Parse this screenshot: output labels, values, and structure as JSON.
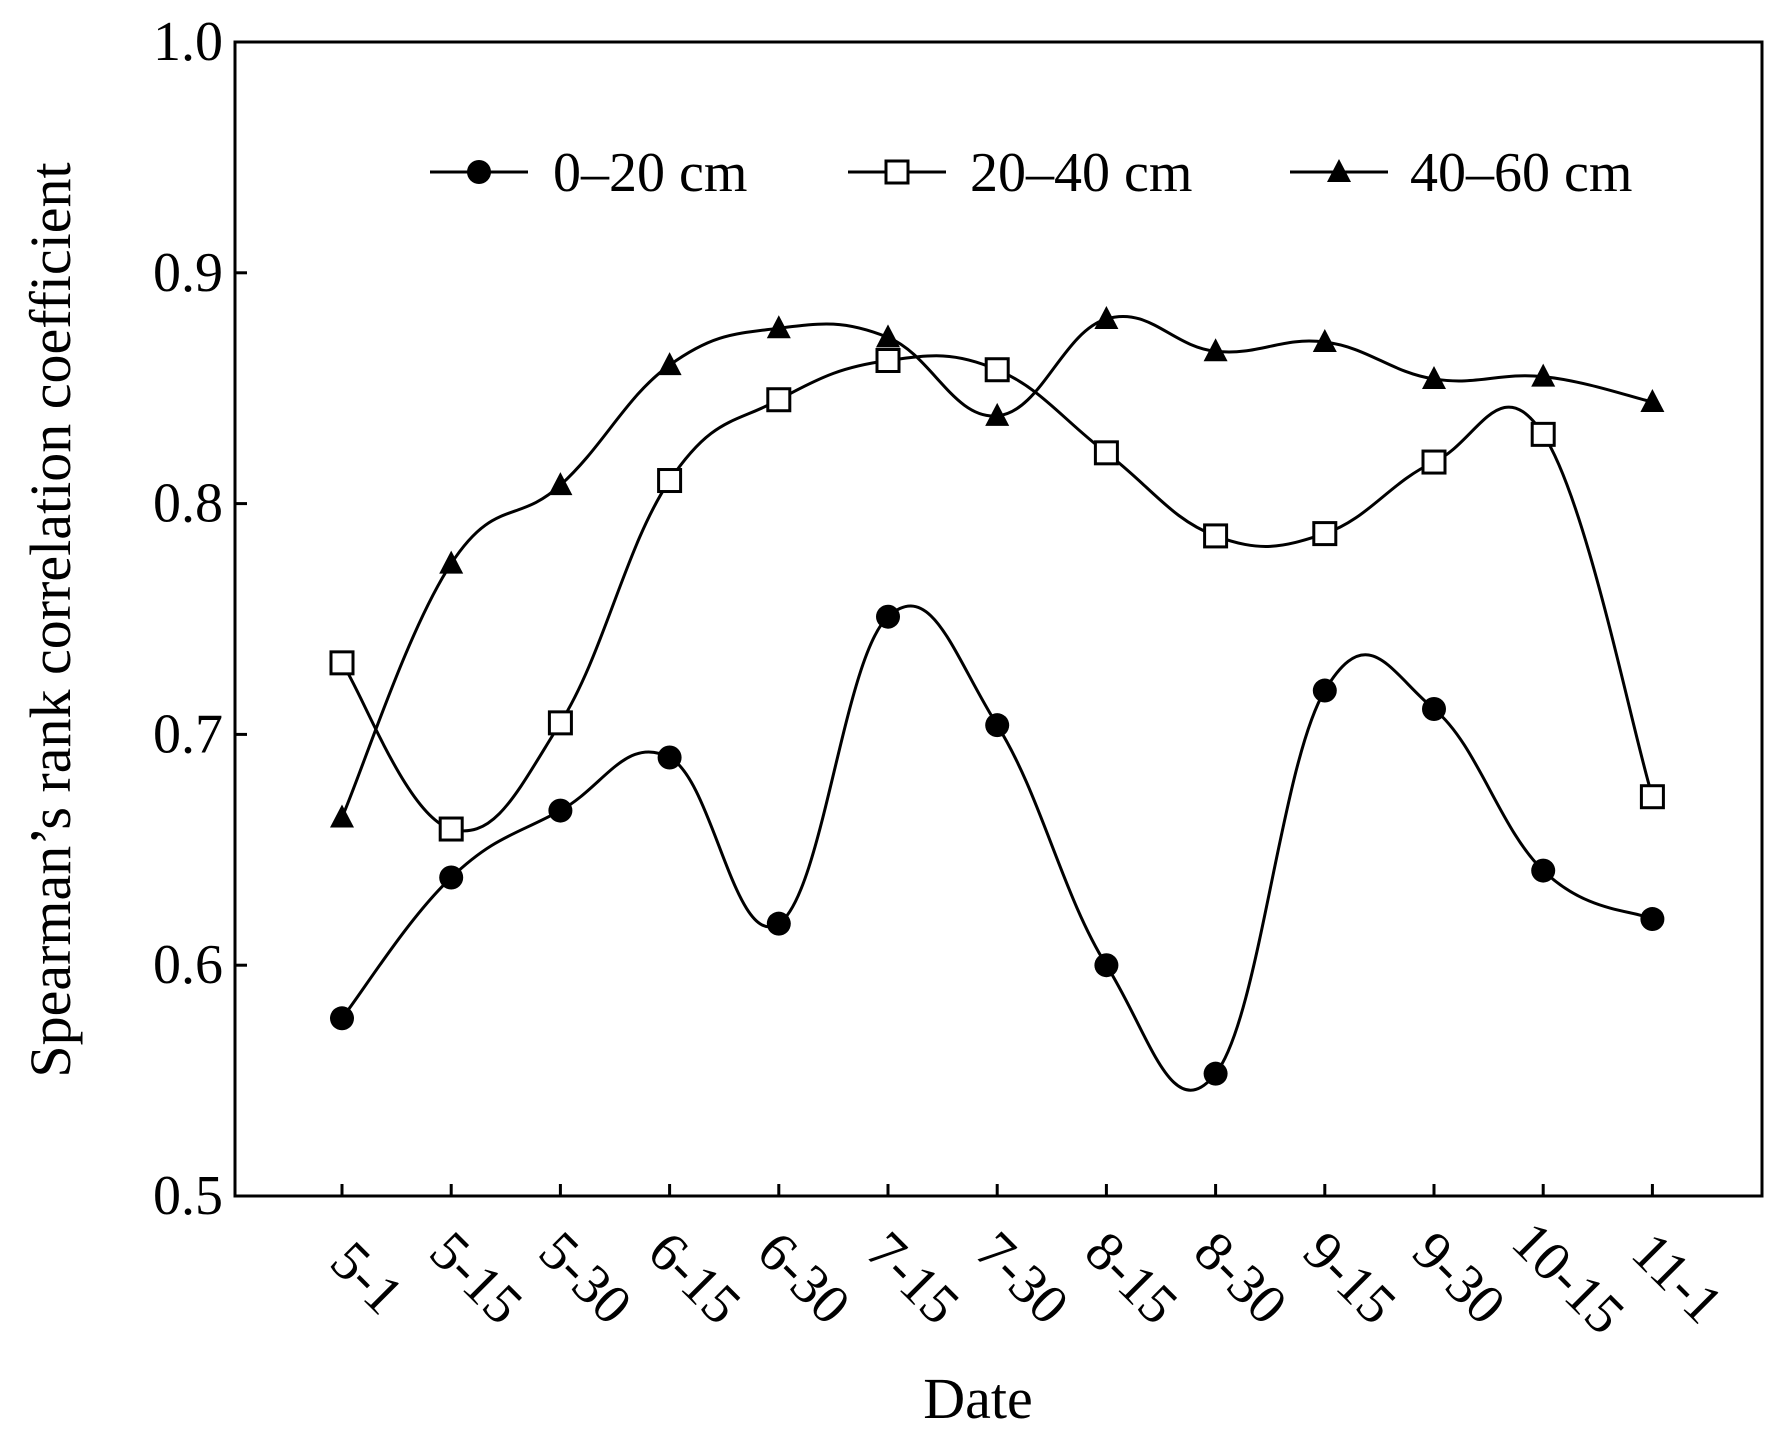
{
  "chart_data": {
    "type": "line",
    "title": "",
    "xlabel": "Date",
    "ylabel": "Spearman’s rank correlation coefficient",
    "ylim": [
      0.5,
      1.0
    ],
    "yticks": [
      "0.5",
      "0.6",
      "0.7",
      "0.8",
      "0.9",
      "1.0"
    ],
    "ytick_values": [
      0.5,
      0.6,
      0.7,
      0.8,
      0.9,
      1.0
    ],
    "categories": [
      "5-1",
      "5-15",
      "5-30",
      "6-15",
      "6-30",
      "7-15",
      "7-30",
      "8-15",
      "8-30",
      "9-15",
      "9-30",
      "10-15",
      "11-1"
    ],
    "grid": false,
    "legend_position": "top",
    "series": [
      {
        "name": "0–20 cm",
        "marker": "filled-circle",
        "values": [
          0.577,
          0.638,
          0.667,
          0.69,
          0.618,
          0.751,
          0.704,
          0.6,
          0.553,
          0.719,
          0.711,
          0.641,
          0.62
        ]
      },
      {
        "name": "20–40 cm",
        "marker": "open-square",
        "values": [
          0.731,
          0.659,
          0.705,
          0.81,
          0.845,
          0.862,
          0.858,
          0.822,
          0.786,
          0.787,
          0.818,
          0.83,
          0.673
        ]
      },
      {
        "name": "40–60 cm",
        "marker": "filled-triangle",
        "values": [
          0.664,
          0.774,
          0.808,
          0.86,
          0.876,
          0.872,
          0.838,
          0.88,
          0.866,
          0.87,
          0.854,
          0.855,
          0.844
        ]
      }
    ],
    "colors": {
      "line": "#000000",
      "background": "#ffffff"
    }
  }
}
